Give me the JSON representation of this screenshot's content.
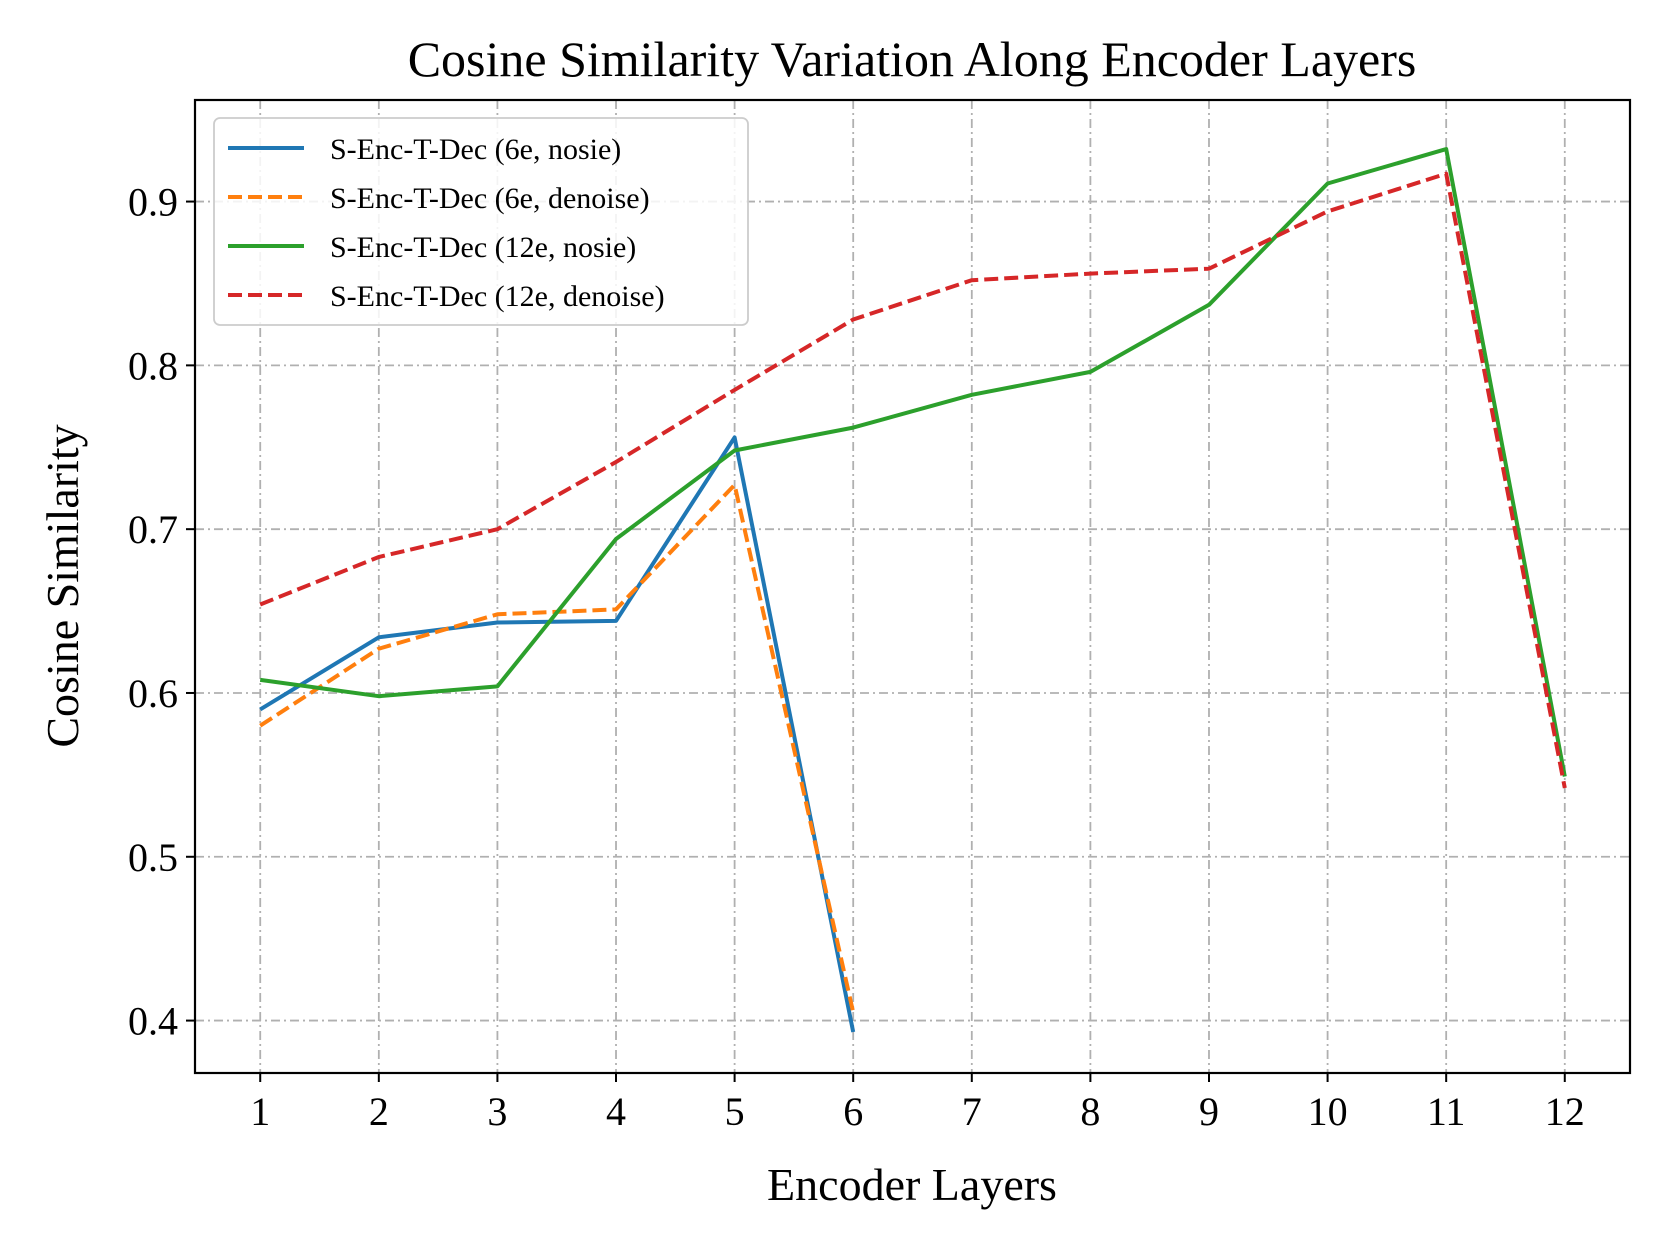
{
  "chart_data": {
    "type": "line",
    "title": "Cosine Similarity Variation Along Encoder Layers",
    "xlabel": "Encoder Layers",
    "ylabel": "Cosine Similarity",
    "xlim": [
      0.45,
      12.55
    ],
    "ylim": [
      0.368,
      0.962
    ],
    "xticks": [
      1,
      2,
      3,
      4,
      5,
      6,
      7,
      8,
      9,
      10,
      11,
      12
    ],
    "xtick_labels": [
      "1",
      "2",
      "3",
      "4",
      "5",
      "6",
      "7",
      "8",
      "9",
      "10",
      "11",
      "12"
    ],
    "yticks": [
      0.4,
      0.5,
      0.6,
      0.7,
      0.8,
      0.9
    ],
    "ytick_labels": [
      "0.4",
      "0.5",
      "0.6",
      "0.7",
      "0.8",
      "0.9"
    ],
    "grid": true,
    "legend_position": "top-left",
    "series": [
      {
        "name": "S-Enc-T-Dec (6e, nosie)",
        "color": "#1f77b4",
        "style": "solid",
        "x": [
          1,
          2,
          3,
          4,
          5,
          6
        ],
        "values": [
          0.59,
          0.634,
          0.643,
          0.644,
          0.756,
          0.393
        ]
      },
      {
        "name": "S-Enc-T-Dec (6e, denoise)",
        "color": "#ff7f0e",
        "style": "dashed",
        "x": [
          1,
          2,
          3,
          4,
          5,
          6
        ],
        "values": [
          0.58,
          0.627,
          0.648,
          0.651,
          0.727,
          0.405
        ]
      },
      {
        "name": "S-Enc-T-Dec (12e, nosie)",
        "color": "#2ca02c",
        "style": "solid",
        "x": [
          1,
          2,
          3,
          4,
          5,
          6,
          7,
          8,
          9,
          10,
          11,
          12
        ],
        "values": [
          0.608,
          0.598,
          0.604,
          0.694,
          0.748,
          0.762,
          0.782,
          0.796,
          0.837,
          0.911,
          0.932,
          0.549
        ]
      },
      {
        "name": "S-Enc-T-Dec (12e, denoise)",
        "color": "#d62728",
        "style": "dashed",
        "x": [
          1,
          2,
          3,
          4,
          5,
          6,
          7,
          8,
          9,
          10,
          11,
          12
        ],
        "values": [
          0.654,
          0.683,
          0.7,
          0.741,
          0.785,
          0.828,
          0.852,
          0.856,
          0.859,
          0.894,
          0.917,
          0.542
        ]
      }
    ]
  }
}
